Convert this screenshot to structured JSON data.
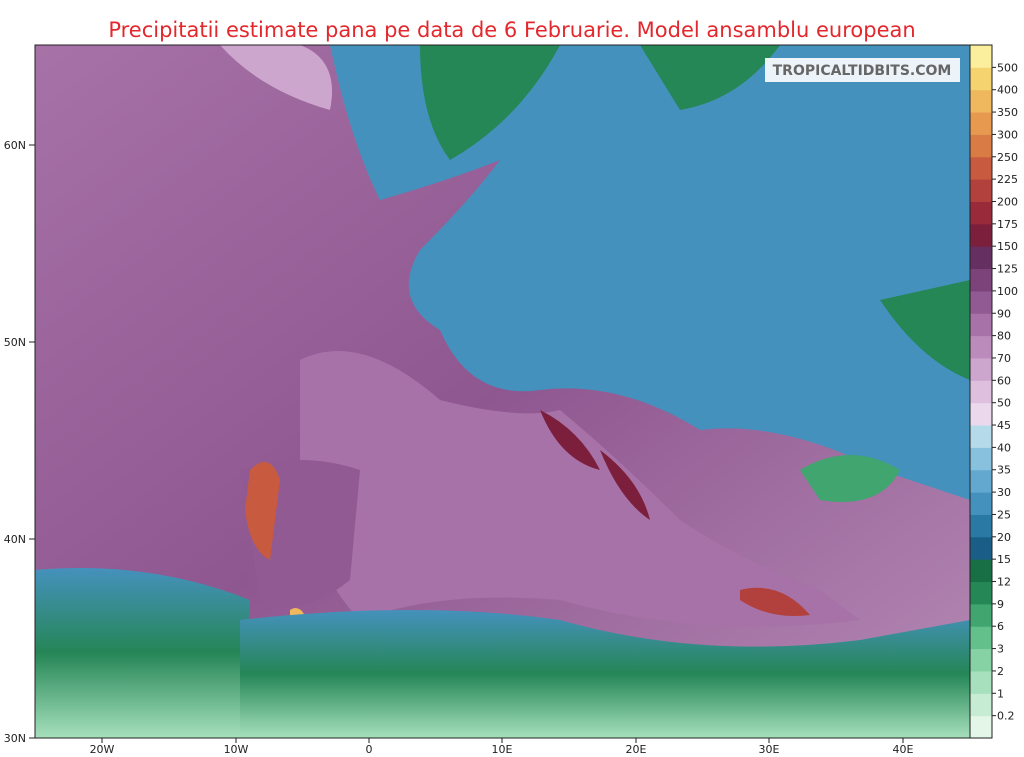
{
  "title": "Precipitatii estimate pana pe data de 6 Februarie. Model ansamblu european",
  "watermark": "TROPICALTIDBITS.COM",
  "lat_labels": [
    "30N",
    "40N",
    "50N",
    "60N"
  ],
  "lon_labels": [
    "20W",
    "10W",
    "0",
    "10E",
    "20E",
    "30E",
    "40E"
  ],
  "colorbar": {
    "levels": [
      "0.2",
      "1",
      "2",
      "3",
      "6",
      "9",
      "12",
      "15",
      "20",
      "25",
      "30",
      "35",
      "40",
      "45",
      "50",
      "60",
      "70",
      "80",
      "90",
      "100",
      "125",
      "150",
      "175",
      "200",
      "225",
      "250",
      "300",
      "350",
      "400",
      "500"
    ],
    "colors": [
      "#e3f6e8",
      "#c6ecd3",
      "#a6e0bc",
      "#86d2a5",
      "#63c08a",
      "#40a56f",
      "#258656",
      "#186e45",
      "#1a5e88",
      "#2a78a4",
      "#4591bd",
      "#63a9cf",
      "#88c1de",
      "#b5dbeb",
      "#ecd8ec",
      "#dec0de",
      "#cda6cd",
      "#bb8cbb",
      "#a672a7",
      "#915a92",
      "#7b4379",
      "#662f62",
      "#7c1f3c",
      "#982a3a",
      "#b2403c",
      "#c85b3f",
      "#d97b45",
      "#e6994f",
      "#efb75e",
      "#f5d470",
      "#fbee9c"
    ]
  }
}
